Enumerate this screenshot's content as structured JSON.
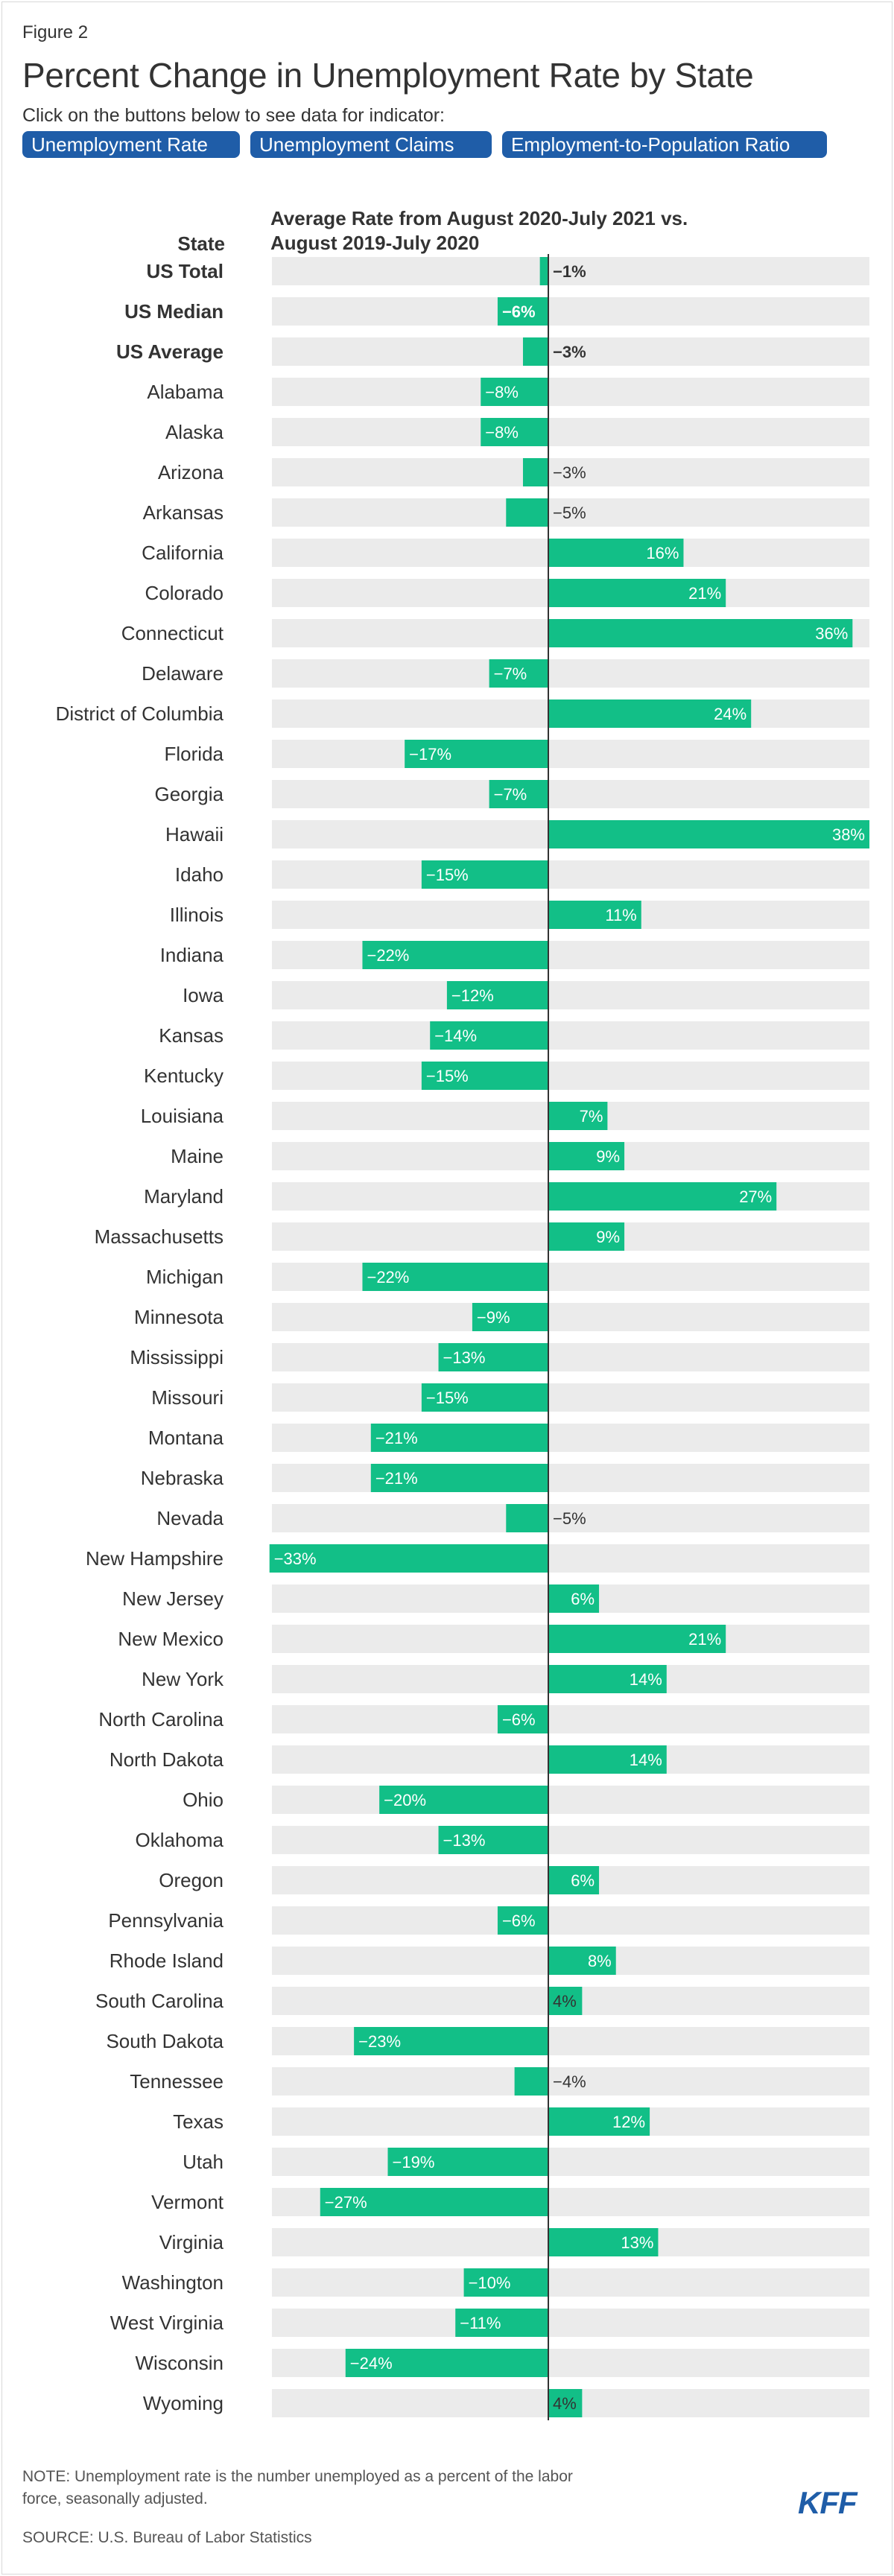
{
  "figure_label": "Figure 2",
  "title": "Percent Change in Unemployment Rate by State",
  "instruction": "Click on the buttons below to see data for indicator:",
  "buttons": [
    "Unemployment Rate",
    "Unemployment Claims",
    "Employment-to-Population Ratio"
  ],
  "colors": {
    "bar": "#12bf87",
    "track": "#ebebeb",
    "accent": "#1f5da8",
    "axis": "#333333"
  },
  "chart_data": {
    "type": "bar",
    "orientation": "horizontal",
    "title": "Percent Change in Unemployment Rate by State",
    "category_header": "State",
    "value_header": "Average Rate from August 2020-July 2021 vs. August 2019-July 2020",
    "value_header_lines": [
      "Average Rate from August 2020-July 2021 vs.",
      "August 2019-July 2020"
    ],
    "xlim": [
      -33,
      38
    ],
    "categories": [
      "US Total",
      "US Median",
      "US Average",
      "Alabama",
      "Alaska",
      "Arizona",
      "Arkansas",
      "California",
      "Colorado",
      "Connecticut",
      "Delaware",
      "District of Columbia",
      "Florida",
      "Georgia",
      "Hawaii",
      "Idaho",
      "Illinois",
      "Indiana",
      "Iowa",
      "Kansas",
      "Kentucky",
      "Louisiana",
      "Maine",
      "Maryland",
      "Massachusetts",
      "Michigan",
      "Minnesota",
      "Mississippi",
      "Missouri",
      "Montana",
      "Nebraska",
      "Nevada",
      "New Hampshire",
      "New Jersey",
      "New Mexico",
      "New York",
      "North Carolina",
      "North Dakota",
      "Ohio",
      "Oklahoma",
      "Oregon",
      "Pennsylvania",
      "Rhode Island",
      "South Carolina",
      "South Dakota",
      "Tennessee",
      "Texas",
      "Utah",
      "Vermont",
      "Virginia",
      "Washington",
      "West Virginia",
      "Wisconsin",
      "Wyoming"
    ],
    "values": [
      -1,
      -6,
      -3,
      -8,
      -8,
      -3,
      -5,
      16,
      21,
      36,
      -7,
      24,
      -17,
      -7,
      38,
      -15,
      11,
      -22,
      -12,
      -14,
      -15,
      7,
      9,
      27,
      9,
      -22,
      -9,
      -13,
      -15,
      -21,
      -21,
      -5,
      -33,
      6,
      21,
      14,
      -6,
      14,
      -20,
      -13,
      6,
      -6,
      8,
      4,
      -23,
      -4,
      12,
      -19,
      -27,
      13,
      -10,
      -11,
      -24,
      4
    ],
    "labels": [
      "−1%",
      "−6%",
      "−3%",
      "−8%",
      "−8%",
      "−3%",
      "−5%",
      "16%",
      "21%",
      "36%",
      "−7%",
      "24%",
      "−17%",
      "−7%",
      "38%",
      "−15%",
      "11%",
      "−22%",
      "−12%",
      "−14%",
      "−15%",
      "7%",
      "9%",
      "27%",
      "9%",
      "−22%",
      "−9%",
      "−13%",
      "−15%",
      "−21%",
      "−21%",
      "−5%",
      "−33%",
      "6%",
      "21%",
      "14%",
      "−6%",
      "14%",
      "−20%",
      "−13%",
      "6%",
      "−6%",
      "8%",
      "4%",
      "−23%",
      "−4%",
      "12%",
      "−19%",
      "−27%",
      "13%",
      "−10%",
      "−11%",
      "−24%",
      "4%"
    ],
    "bold_rows": 3
  },
  "note": "NOTE: Unemployment rate is the number unemployed as a percent of the labor force, seasonally adjusted.",
  "source": "SOURCE: U.S. Bureau of Labor Statistics",
  "logo": "KFF"
}
